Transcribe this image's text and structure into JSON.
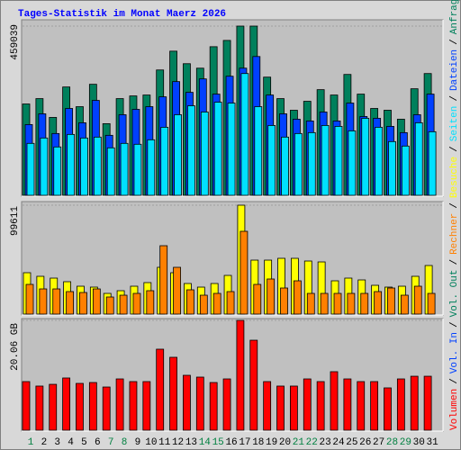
{
  "title": "Tages-Statistik im Monat Maerz 2026",
  "separator": "/",
  "categories": [
    "1",
    "2",
    "3",
    "4",
    "5",
    "6",
    "7",
    "8",
    "9",
    "10",
    "11",
    "12",
    "13",
    "14",
    "15",
    "16",
    "17",
    "18",
    "19",
    "20",
    "21",
    "22",
    "23",
    "24",
    "25",
    "26",
    "27",
    "28",
    "29",
    "30",
    "31"
  ],
  "category_colors": [
    "#008040",
    "#000000",
    "#000000",
    "#000000",
    "#000000",
    "#000000",
    "#008040",
    "#008040",
    "#000000",
    "#000000",
    "#000000",
    "#000000",
    "#000000",
    "#008040",
    "#008040",
    "#000000",
    "#000000",
    "#000000",
    "#000000",
    "#000000",
    "#008040",
    "#008040",
    "#000000",
    "#000000",
    "#000000",
    "#000000",
    "#000000",
    "#008040",
    "#008040",
    "#000000",
    "#000000"
  ],
  "chart_data": [
    {
      "type": "bar",
      "ylim": [
        0,
        459039
      ],
      "yticks": [
        459039
      ],
      "series": [
        {
          "name": "Anfragen",
          "color": "#00805c",
          "values": [
            247740,
            262310,
            211310,
            293880,
            240450,
            301170,
            194300,
            262310,
            269600,
            272030,
            340030,
            391040,
            357030,
            344890,
            403180,
            420180,
            459039,
            459039,
            320600,
            262310,
            230740,
            255020,
            286600,
            272030,
            327890,
            274460,
            235600,
            230740,
            206450,
            289030,
            330320
          ]
        },
        {
          "name": "Dateien",
          "color": "#0040ff",
          "values": [
            191890,
            221040,
            167600,
            235610,
            196750,
            257470,
            162740,
            218610,
            233180,
            240470,
            267190,
            308480,
            279340,
            315770,
            274480,
            323060,
            344920,
            376500,
            272050,
            221040,
            206470,
            201610,
            225900,
            201610,
            250190,
            213750,
            208890,
            187030,
            170030,
            218610,
            274480
          ]
        },
        {
          "name": "Seiten",
          "color": "#00e0ff",
          "values": [
            140880,
            155460,
            131170,
            165170,
            155460,
            157890,
            128740,
            140880,
            138450,
            150600,
            184600,
            218610,
            242900,
            225900,
            252620,
            250190,
            330340,
            240470,
            189460,
            157890,
            167600,
            170030,
            189460,
            187030,
            174890,
            208890,
            184600,
            145740,
            133600,
            196750,
            172460
          ]
        }
      ]
    },
    {
      "type": "bar",
      "ylim": [
        0,
        99611
      ],
      "yticks": [
        99611
      ],
      "series": [
        {
          "name": "Besuche",
          "color": "#ffff00",
          "values": [
            37860,
            34570,
            32920,
            29630,
            25510,
            24690,
            18930,
            21400,
            25510,
            28810,
            42800,
            37860,
            27980,
            24690,
            27980,
            35390,
            99611,
            49380,
            49380,
            51030,
            51030,
            48560,
            47730,
            30450,
            32920,
            31270,
            26340,
            24690,
            25510,
            34570,
            44440
          ]
        },
        {
          "name": "Rechner",
          "color": "#ff8000",
          "values": [
            27160,
            23040,
            23040,
            20580,
            19750,
            23040,
            15640,
            17280,
            18930,
            21400,
            62550,
            42800,
            22220,
            17280,
            18930,
            20580,
            75720,
            27160,
            32100,
            23870,
            30450,
            18930,
            18930,
            18930,
            18930,
            18930,
            20580,
            23870,
            17280,
            25510,
            18930
          ]
        }
      ]
    },
    {
      "type": "bar",
      "ylim": [
        0,
        20.06
      ],
      "yticks": [
        {
          "value": 20.06,
          "label": "20.06 GB"
        }
      ],
      "series": [
        {
          "name": "Volumen",
          "color": "#ff0000",
          "values": [
            8.88,
            8.06,
            8.38,
            9.54,
            8.55,
            8.71,
            7.89,
            9.37,
            8.88,
            8.88,
            14.8,
            13.32,
            10.03,
            9.7,
            8.71,
            9.37,
            20.06,
            16.44,
            8.88,
            8.06,
            8.06,
            9.37,
            8.88,
            10.69,
            9.37,
            8.88,
            8.88,
            7.73,
            9.37,
            9.86,
            9.86
          ]
        }
      ],
      "legend_extra": [
        {
          "name": "Vol. In",
          "color": "#0040ff"
        },
        {
          "name": "Vol. Out",
          "color": "#00805c"
        }
      ]
    }
  ]
}
